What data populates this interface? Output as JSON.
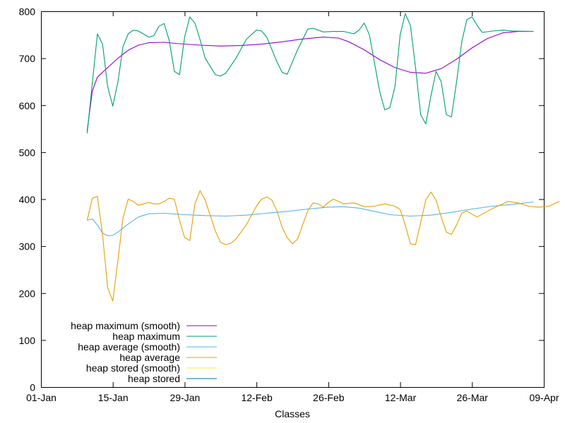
{
  "chart_data": {
    "type": "line",
    "xlabel": "Classes",
    "ylabel": "",
    "ylim": [
      0,
      800
    ],
    "xlim": [
      "01-Jan",
      "09-Apr"
    ],
    "x_ticks": [
      "01-Jan",
      "15-Jan",
      "29-Jan",
      "12-Feb",
      "26-Feb",
      "12-Mar",
      "26-Mar",
      "09-Apr"
    ],
    "y_ticks": [
      "0",
      "100",
      "200",
      "300",
      "400",
      "500",
      "600",
      "700",
      "800"
    ],
    "grid": false,
    "legend": "bottom-left",
    "series": [
      {
        "name": "heap maximum (smooth)",
        "color": "#9400d3",
        "points": [
          [
            "10-Jan",
            545
          ],
          [
            "11-Jan",
            630
          ],
          [
            "12-Jan",
            660
          ],
          [
            "14-Jan",
            680
          ],
          [
            "16-Jan",
            700
          ],
          [
            "18-Jan",
            717
          ],
          [
            "20-Jan",
            728
          ],
          [
            "22-Jan",
            733
          ],
          [
            "25-Jan",
            734
          ],
          [
            "28-Jan",
            731
          ],
          [
            "01-Feb",
            728
          ],
          [
            "05-Feb",
            726
          ],
          [
            "09-Feb",
            727
          ],
          [
            "13-Feb",
            730
          ],
          [
            "17-Feb",
            735
          ],
          [
            "21-Feb",
            741
          ],
          [
            "25-Feb",
            745
          ],
          [
            "28-Feb",
            743
          ],
          [
            "02-Mar",
            735
          ],
          [
            "05-Mar",
            718
          ],
          [
            "08-Mar",
            697
          ],
          [
            "11-Mar",
            680
          ],
          [
            "14-Mar",
            670
          ],
          [
            "17-Mar",
            668
          ],
          [
            "20-Mar",
            678
          ],
          [
            "23-Mar",
            698
          ],
          [
            "26-Mar",
            722
          ],
          [
            "29-Mar",
            742
          ],
          [
            "01-Apr",
            754
          ],
          [
            "04-Apr",
            757
          ],
          [
            "07-Apr",
            757
          ]
        ]
      },
      {
        "name": "heap maximum",
        "color": "#009e73",
        "points": [
          [
            "10-Jan",
            540
          ],
          [
            "12-Jan",
            752
          ],
          [
            "13-Jan",
            730
          ],
          [
            "14-Jan",
            640
          ],
          [
            "15-Jan",
            598
          ],
          [
            "16-Jan",
            650
          ],
          [
            "17-Jan",
            725
          ],
          [
            "18-Jan",
            752
          ],
          [
            "19-Jan",
            760
          ],
          [
            "20-Jan",
            758
          ],
          [
            "22-Jan",
            745
          ],
          [
            "23-Jan",
            748
          ],
          [
            "24-Jan",
            768
          ],
          [
            "25-Jan",
            774
          ],
          [
            "26-Jan",
            738
          ],
          [
            "27-Jan",
            672
          ],
          [
            "28-Jan",
            665
          ],
          [
            "29-Jan",
            745
          ],
          [
            "30-Jan",
            788
          ],
          [
            "31-Jan",
            775
          ],
          [
            "01-Feb",
            740
          ],
          [
            "02-Feb",
            700
          ],
          [
            "04-Feb",
            665
          ],
          [
            "05-Feb",
            662
          ],
          [
            "06-Feb",
            668
          ],
          [
            "08-Feb",
            700
          ],
          [
            "10-Feb",
            740
          ],
          [
            "12-Feb",
            760
          ],
          [
            "13-Feb",
            758
          ],
          [
            "14-Feb",
            745
          ],
          [
            "16-Feb",
            692
          ],
          [
            "17-Feb",
            670
          ],
          [
            "18-Feb",
            666
          ],
          [
            "20-Feb",
            718
          ],
          [
            "22-Feb",
            762
          ],
          [
            "23-Feb",
            764
          ],
          [
            "25-Feb",
            756
          ],
          [
            "27-Feb",
            757
          ],
          [
            "01-Mar",
            757
          ],
          [
            "03-Mar",
            752
          ],
          [
            "04-Mar",
            760
          ],
          [
            "05-Mar",
            775
          ],
          [
            "06-Mar",
            750
          ],
          [
            "08-Mar",
            630
          ],
          [
            "09-Mar",
            590
          ],
          [
            "10-Mar",
            595
          ],
          [
            "11-Mar",
            640
          ],
          [
            "12-Mar",
            750
          ],
          [
            "13-Mar",
            795
          ],
          [
            "14-Mar",
            770
          ],
          [
            "15-Mar",
            680
          ],
          [
            "16-Mar",
            580
          ],
          [
            "17-Mar",
            560
          ],
          [
            "18-Mar",
            620
          ],
          [
            "19-Mar",
            672
          ],
          [
            "20-Mar",
            650
          ],
          [
            "21-Mar",
            580
          ],
          [
            "22-Mar",
            575
          ],
          [
            "23-Mar",
            650
          ],
          [
            "24-Mar",
            735
          ],
          [
            "25-Mar",
            782
          ],
          [
            "26-Mar",
            788
          ],
          [
            "27-Mar",
            770
          ],
          [
            "28-Mar",
            755
          ],
          [
            "30-Mar",
            758
          ],
          [
            "01-Apr",
            760
          ],
          [
            "03-Apr",
            758
          ],
          [
            "07-Apr",
            757
          ]
        ]
      },
      {
        "name": "heap average (smooth)",
        "color": "#56b4e9",
        "points": [
          [
            "10-Jan",
            355
          ],
          [
            "11-Jan",
            358
          ],
          [
            "12-Jan",
            345
          ],
          [
            "13-Jan",
            328
          ],
          [
            "14-Jan",
            322
          ],
          [
            "15-Jan",
            323
          ],
          [
            "16-Jan",
            330
          ],
          [
            "18-Jan",
            347
          ],
          [
            "20-Jan",
            362
          ],
          [
            "22-Jan",
            369
          ],
          [
            "25-Jan",
            370
          ],
          [
            "29-Jan",
            367
          ],
          [
            "02-Feb",
            365
          ],
          [
            "06-Feb",
            364
          ],
          [
            "10-Feb",
            366
          ],
          [
            "14-Feb",
            370
          ],
          [
            "18-Feb",
            374
          ],
          [
            "22-Feb",
            379
          ],
          [
            "26-Feb",
            383
          ],
          [
            "01-Mar",
            384
          ],
          [
            "04-Mar",
            381
          ],
          [
            "07-Mar",
            374
          ],
          [
            "10-Mar",
            367
          ],
          [
            "14-Mar",
            364
          ],
          [
            "18-Mar",
            366
          ],
          [
            "22-Mar",
            372
          ],
          [
            "26-Mar",
            379
          ],
          [
            "30-Mar",
            385
          ],
          [
            "03-Apr",
            389
          ],
          [
            "07-Apr",
            394
          ]
        ]
      },
      {
        "name": "heap average",
        "color": "#e69f00",
        "points": [
          [
            "10-Jan",
            355
          ],
          [
            "11-Jan",
            402
          ],
          [
            "12-Jan",
            406
          ],
          [
            "13-Jan",
            325
          ],
          [
            "14-Jan",
            212
          ],
          [
            "15-Jan",
            183
          ],
          [
            "16-Jan",
            270
          ],
          [
            "17-Jan",
            360
          ],
          [
            "18-Jan",
            400
          ],
          [
            "19-Jan",
            395
          ],
          [
            "20-Jan",
            387
          ],
          [
            "21-Jan",
            390
          ],
          [
            "22-Jan",
            393
          ],
          [
            "23-Jan",
            390
          ],
          [
            "24-Jan",
            390
          ],
          [
            "25-Jan",
            395
          ],
          [
            "26-Jan",
            402
          ],
          [
            "27-Jan",
            400
          ],
          [
            "28-Jan",
            355
          ],
          [
            "29-Jan",
            318
          ],
          [
            "30-Jan",
            312
          ],
          [
            "31-Jan",
            390
          ],
          [
            "01-Feb",
            418
          ],
          [
            "02-Feb",
            398
          ],
          [
            "03-Feb",
            365
          ],
          [
            "04-Feb",
            332
          ],
          [
            "05-Feb",
            308
          ],
          [
            "06-Feb",
            303
          ],
          [
            "07-Feb",
            306
          ],
          [
            "08-Feb",
            315
          ],
          [
            "10-Feb",
            345
          ],
          [
            "12-Feb",
            385
          ],
          [
            "13-Feb",
            400
          ],
          [
            "14-Feb",
            405
          ],
          [
            "15-Feb",
            398
          ],
          [
            "16-Feb",
            375
          ],
          [
            "17-Feb",
            340
          ],
          [
            "18-Feb",
            318
          ],
          [
            "19-Feb",
            305
          ],
          [
            "20-Feb",
            315
          ],
          [
            "21-Feb",
            345
          ],
          [
            "22-Feb",
            375
          ],
          [
            "23-Feb",
            392
          ],
          [
            "24-Feb",
            390
          ],
          [
            "25-Feb",
            383
          ],
          [
            "26-Feb",
            393
          ],
          [
            "27-Feb",
            400
          ],
          [
            "28-Feb",
            395
          ],
          [
            "01-Mar",
            390
          ],
          [
            "03-Mar",
            392
          ],
          [
            "05-Mar",
            384
          ],
          [
            "07-Mar",
            385
          ],
          [
            "09-Mar",
            390
          ],
          [
            "11-Mar",
            385
          ],
          [
            "12-Mar",
            378
          ],
          [
            "13-Mar",
            345
          ],
          [
            "14-Mar",
            305
          ],
          [
            "15-Mar",
            303
          ],
          [
            "16-Mar",
            350
          ],
          [
            "17-Mar",
            398
          ],
          [
            "18-Mar",
            415
          ],
          [
            "19-Mar",
            398
          ],
          [
            "20-Mar",
            362
          ],
          [
            "21-Mar",
            330
          ],
          [
            "22-Mar",
            325
          ],
          [
            "23-Mar",
            345
          ],
          [
            "24-Mar",
            370
          ],
          [
            "25-Mar",
            375
          ],
          [
            "26-Mar",
            368
          ],
          [
            "27-Mar",
            362
          ],
          [
            "28-Mar",
            368
          ],
          [
            "30-Mar",
            380
          ],
          [
            "01-Apr",
            390
          ],
          [
            "02-Apr",
            395
          ],
          [
            "04-Apr",
            392
          ],
          [
            "06-Apr",
            385
          ],
          [
            "08-Apr",
            383
          ],
          [
            "10-Apr",
            385
          ],
          [
            "12-Apr",
            395
          ]
        ]
      },
      {
        "name": "heap stored (smooth)",
        "color": "#f0e442",
        "points": []
      },
      {
        "name": "heap stored",
        "color": "#0072b2",
        "points": []
      }
    ]
  }
}
